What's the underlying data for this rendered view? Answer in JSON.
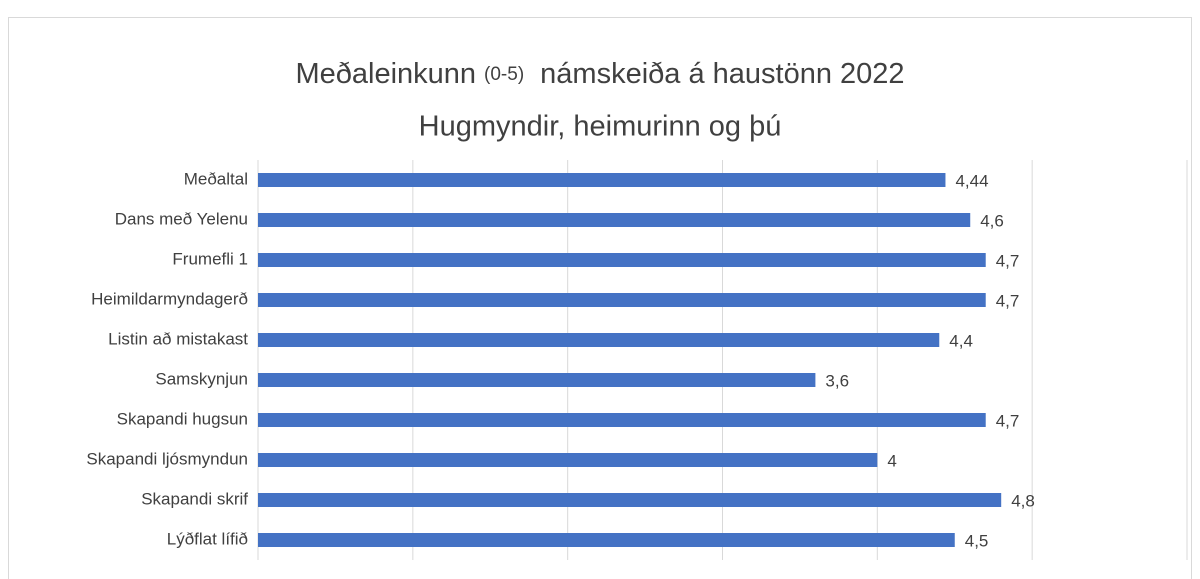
{
  "chart_data": {
    "type": "bar",
    "title": [
      "Meðaleinkunn",
      "(0-5)",
      "námskeiða á haustönn 2022"
    ],
    "subtitle": "Hugmyndir, heimurinn og þú",
    "categories": [
      "Meðaltal",
      "Dans með Yelenu",
      "Frumefli 1",
      "Heimildarmyndagerð",
      "Listin að mistakast",
      "Samskynjun",
      "Skapandi hugsun",
      "Skapandi ljósmyndun",
      "Skapandi skrif",
      "Lýðflat lífið"
    ],
    "values": [
      4.44,
      4.6,
      4.7,
      4.7,
      4.4,
      3.6,
      4.7,
      4,
      4.8,
      4.5
    ],
    "value_labels": [
      "4,44",
      "4,6",
      "4,7",
      "4,7",
      "4,4",
      "3,6",
      "4,7",
      "4",
      "4,8",
      "4,5"
    ],
    "color": "#4472c4",
    "xlim": [
      0,
      6
    ],
    "xticks": [
      0,
      1,
      2,
      3,
      4,
      5,
      6
    ],
    "grid": true
  }
}
